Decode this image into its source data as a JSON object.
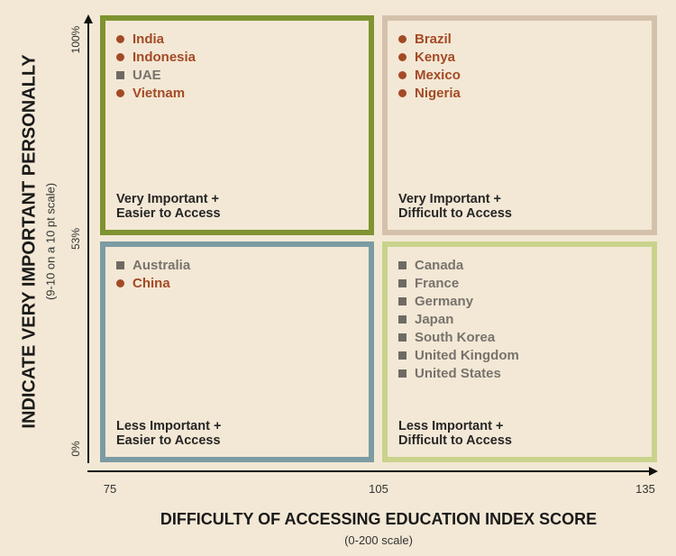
{
  "colors": {
    "background": "#f3e8d5",
    "important_marker": "#a34a26",
    "other_marker": "#6e6a64",
    "top_left_border": "#7f9331",
    "top_right_border": "#d4c1ac",
    "bottom_left_border": "#7c9ca3",
    "bottom_right_border": "#c9d38c"
  },
  "axes": {
    "y_title": "INDICATE VERY IMPORTANT PERSONALLY",
    "y_subtitle": "(9-10 on a 10 pt scale)",
    "y_ticks": [
      "0%",
      "53%",
      "100%"
    ],
    "x_title": "DIFFICULTY OF ACCESSING EDUCATION INDEX SCORE",
    "x_subtitle": "(0-200 scale)",
    "x_ticks": [
      "75",
      "105",
      "135"
    ]
  },
  "quadrants": {
    "top_left": {
      "label_line1": "Very Important +",
      "label_line2": "Easier to Access",
      "items": [
        {
          "name": "India",
          "marker": "circle"
        },
        {
          "name": "Indonesia",
          "marker": "circle"
        },
        {
          "name": "UAE",
          "marker": "square"
        },
        {
          "name": "Vietnam",
          "marker": "circle"
        }
      ]
    },
    "top_right": {
      "label_line1": "Very Important +",
      "label_line2": "Difficult to Access",
      "items": [
        {
          "name": "Brazil",
          "marker": "circle"
        },
        {
          "name": "Kenya",
          "marker": "circle"
        },
        {
          "name": "Mexico",
          "marker": "circle"
        },
        {
          "name": "Nigeria",
          "marker": "circle"
        }
      ]
    },
    "bottom_left": {
      "label_line1": "Less Important +",
      "label_line2": "Easier to Access",
      "items": [
        {
          "name": "Australia",
          "marker": "square"
        },
        {
          "name": "China",
          "marker": "circle"
        }
      ]
    },
    "bottom_right": {
      "label_line1": "Less Important +",
      "label_line2": "Difficult to Access",
      "items": [
        {
          "name": "Canada",
          "marker": "square"
        },
        {
          "name": "France",
          "marker": "square"
        },
        {
          "name": "Germany",
          "marker": "square"
        },
        {
          "name": "Japan",
          "marker": "square"
        },
        {
          "name": "South Korea",
          "marker": "square"
        },
        {
          "name": "United Kingdom",
          "marker": "square"
        },
        {
          "name": "United States",
          "marker": "square"
        }
      ]
    }
  }
}
